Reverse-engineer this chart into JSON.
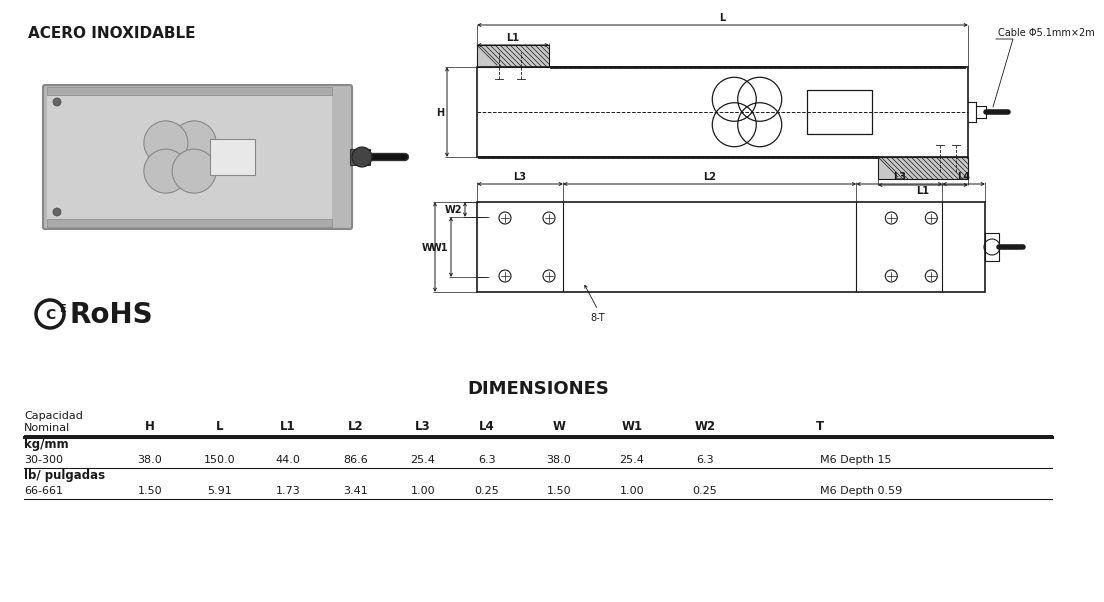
{
  "top_left_text": "ACERO INOXIDABLE",
  "cable_label": "Cable Φ5.1mm×2m",
  "table_title": "DIMENSIONES",
  "table_header_line1": "Capacidad",
  "table_header_line2": "Nominal",
  "table_columns": [
    "H",
    "L",
    "L1",
    "L2",
    "L3",
    "L4",
    "W",
    "W1",
    "W2",
    "T"
  ],
  "table_section1_label": "kg/mm",
  "table_row1_label": "30-300",
  "table_row1_values": [
    "38.0",
    "150.0",
    "44.0",
    "86.6",
    "25.4",
    "6.3",
    "38.0",
    "25.4",
    "6.3",
    "M6 Depth 15"
  ],
  "table_section2_label": "lb/ pulgadas",
  "table_row2_label": "66-661",
  "table_row2_values": [
    "1.50",
    "5.91",
    "1.73",
    "3.41",
    "1.00",
    "0.25",
    "1.50",
    "1.00",
    "0.25",
    "M6 Depth 0.59"
  ],
  "bg_color": "#ffffff",
  "line_color": "#1a1a1a",
  "dim_color": "#1a1a1a",
  "gray_fill": "#c8c8c8"
}
